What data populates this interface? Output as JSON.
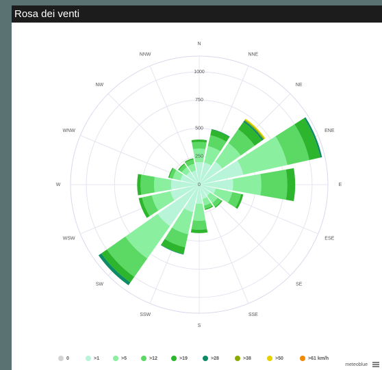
{
  "header": {
    "title": "Rosa dei venti"
  },
  "chart_data": {
    "type": "windrose",
    "categories": [
      "N",
      "NNE",
      "NE",
      "ENE",
      "E",
      "ESE",
      "SE",
      "SSE",
      "S",
      "SSW",
      "SW",
      "WSW",
      "W",
      "WNW",
      "NW",
      "NNW"
    ],
    "series": [
      {
        "name": "0",
        "color": "#d4d4d4",
        "values": [
          0,
          0,
          0,
          0,
          0,
          0,
          0,
          0,
          0,
          0,
          0,
          0,
          0,
          0,
          0,
          0
        ]
      },
      {
        "name": ">1",
        "color": "#b8f5d8",
        "values": [
          200,
          200,
          250,
          400,
          300,
          150,
          120,
          130,
          170,
          250,
          450,
          260,
          250,
          170,
          140,
          130
        ]
      },
      {
        "name": ">5",
        "color": "#8af0a0",
        "values": [
          120,
          150,
          200,
          400,
          250,
          150,
          80,
          60,
          150,
          200,
          350,
          170,
          150,
          70,
          50,
          60
        ]
      },
      {
        "name": ">12",
        "color": "#5cd865",
        "values": [
          60,
          100,
          150,
          200,
          230,
          80,
          40,
          30,
          80,
          120,
          200,
          90,
          120,
          30,
          30,
          40
        ]
      },
      {
        "name": ">19",
        "color": "#2db52d",
        "values": [
          20,
          50,
          80,
          100,
          70,
          20,
          10,
          10,
          30,
          60,
          60,
          30,
          30,
          10,
          10,
          10
        ]
      },
      {
        "name": ">28",
        "color": "#0f8a66",
        "values": [
          0,
          5,
          15,
          15,
          0,
          0,
          0,
          0,
          0,
          5,
          30,
          0,
          0,
          0,
          0,
          0
        ]
      },
      {
        "name": ">38",
        "color": "#8aaa00",
        "values": [
          0,
          0,
          10,
          0,
          0,
          0,
          0,
          0,
          0,
          0,
          0,
          0,
          0,
          0,
          0,
          0
        ]
      },
      {
        "name": ">50",
        "color": "#e6d200",
        "values": [
          0,
          0,
          10,
          0,
          0,
          0,
          0,
          0,
          0,
          0,
          0,
          0,
          0,
          0,
          0,
          0
        ]
      },
      {
        "name": ">61 km/h",
        "color": "#f08a00",
        "values": [
          0,
          0,
          0,
          0,
          0,
          0,
          0,
          0,
          0,
          0,
          0,
          0,
          0,
          0,
          0,
          0
        ]
      }
    ],
    "ylim": [
      0,
      1140
    ],
    "yticks": [
      0,
      250,
      500,
      750,
      1000
    ],
    "credit": "meteoblue"
  }
}
